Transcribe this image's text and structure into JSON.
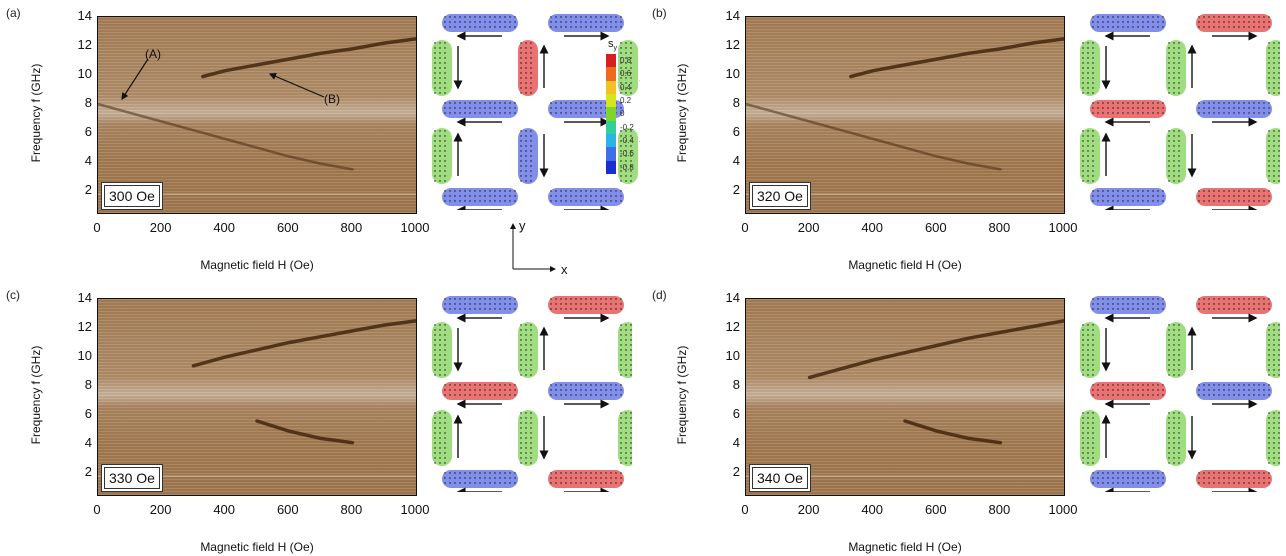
{
  "panels": [
    {
      "label": "(a)",
      "field": "300 Oe"
    },
    {
      "label": "(b)",
      "field": "320 Oe"
    },
    {
      "label": "(c)",
      "field": "330 Oe"
    },
    {
      "label": "(d)",
      "field": "340 Oe"
    }
  ],
  "axes": {
    "ylabel": "Frequency f (GHz)",
    "xlabel": "Magnetic field H (Oe)",
    "yticks": [
      "14",
      "12",
      "10",
      "8",
      "6",
      "4",
      "2"
    ],
    "xticks": [
      "0",
      "200",
      "400",
      "600",
      "800",
      "1000"
    ]
  },
  "annotations": {
    "A": "(A)",
    "B": "(B)"
  },
  "colorbar": {
    "title": "s",
    "subscript": "y",
    "ticks": [
      "0.8",
      "0.6",
      "0.4",
      "0.2",
      "0",
      "-0.2",
      "-0.4",
      "-0.6",
      "-0.8"
    ],
    "colors": [
      "#d62020",
      "#ef6a1a",
      "#f5c021",
      "#d6e61e",
      "#7fd62a",
      "#2fd09a",
      "#2ab5e6",
      "#3f6fe6",
      "#1a2fd0"
    ]
  },
  "axis_indicator": {
    "y": "y",
    "x": "x"
  },
  "chart_data": [
    {
      "type": "heatmap",
      "title": "",
      "field": "300 Oe",
      "xlabel": "Magnetic field H (Oe)",
      "ylabel": "Frequency f (GHz)",
      "xlim": [
        0,
        1000
      ],
      "ylim": [
        0.5,
        14
      ],
      "series": [
        {
          "name": "(A)",
          "x": [
            0,
            100,
            200,
            300,
            400,
            500,
            600,
            700,
            800
          ],
          "y": [
            8.0,
            7.4,
            6.8,
            6.2,
            5.6,
            5.0,
            4.4,
            3.9,
            3.5
          ]
        },
        {
          "name": "(B)",
          "x": [
            330,
            400,
            500,
            600,
            700,
            800,
            900,
            1000
          ],
          "y": [
            9.9,
            10.3,
            10.7,
            11.1,
            11.5,
            11.8,
            12.2,
            12.5
          ]
        }
      ]
    },
    {
      "type": "heatmap",
      "title": "",
      "field": "320 Oe",
      "xlabel": "Magnetic field H (Oe)",
      "ylabel": "Frequency f (GHz)",
      "xlim": [
        0,
        1000
      ],
      "ylim": [
        0.5,
        14
      ],
      "series": [
        {
          "name": "",
          "x": [
            0,
            100,
            200,
            300,
            400,
            500,
            600,
            700,
            800
          ],
          "y": [
            8.0,
            7.4,
            6.8,
            6.2,
            5.6,
            5.0,
            4.4,
            3.9,
            3.5
          ]
        },
        {
          "name": "",
          "x": [
            330,
            400,
            500,
            600,
            700,
            800,
            900,
            1000
          ],
          "y": [
            9.9,
            10.3,
            10.7,
            11.1,
            11.5,
            11.8,
            12.2,
            12.5
          ]
        }
      ]
    },
    {
      "type": "heatmap",
      "title": "",
      "field": "330 Oe",
      "xlabel": "Magnetic field H (Oe)",
      "ylabel": "Frequency f (GHz)",
      "xlim": [
        0,
        1000
      ],
      "ylim": [
        0.5,
        14
      ],
      "series": [
        {
          "name": "",
          "x": [
            300,
            400,
            500,
            600,
            700,
            800,
            900,
            1000
          ],
          "y": [
            9.4,
            10.0,
            10.5,
            11.0,
            11.4,
            11.8,
            12.2,
            12.5
          ]
        },
        {
          "name": "",
          "x": [
            500,
            600,
            700,
            800
          ],
          "y": [
            5.6,
            4.9,
            4.4,
            4.1
          ]
        }
      ]
    },
    {
      "type": "heatmap",
      "title": "",
      "field": "340 Oe",
      "xlabel": "Magnetic field H (Oe)",
      "ylabel": "Frequency f (GHz)",
      "xlim": [
        0,
        1000
      ],
      "ylim": [
        0.5,
        14
      ],
      "series": [
        {
          "name": "",
          "x": [
            200,
            300,
            400,
            500,
            600,
            700,
            800,
            900,
            1000
          ],
          "y": [
            8.6,
            9.2,
            9.8,
            10.3,
            10.8,
            11.3,
            11.7,
            12.1,
            12.5
          ]
        },
        {
          "name": "",
          "x": [
            500,
            600,
            700,
            800
          ],
          "y": [
            5.6,
            4.9,
            4.4,
            4.1
          ]
        }
      ]
    }
  ]
}
